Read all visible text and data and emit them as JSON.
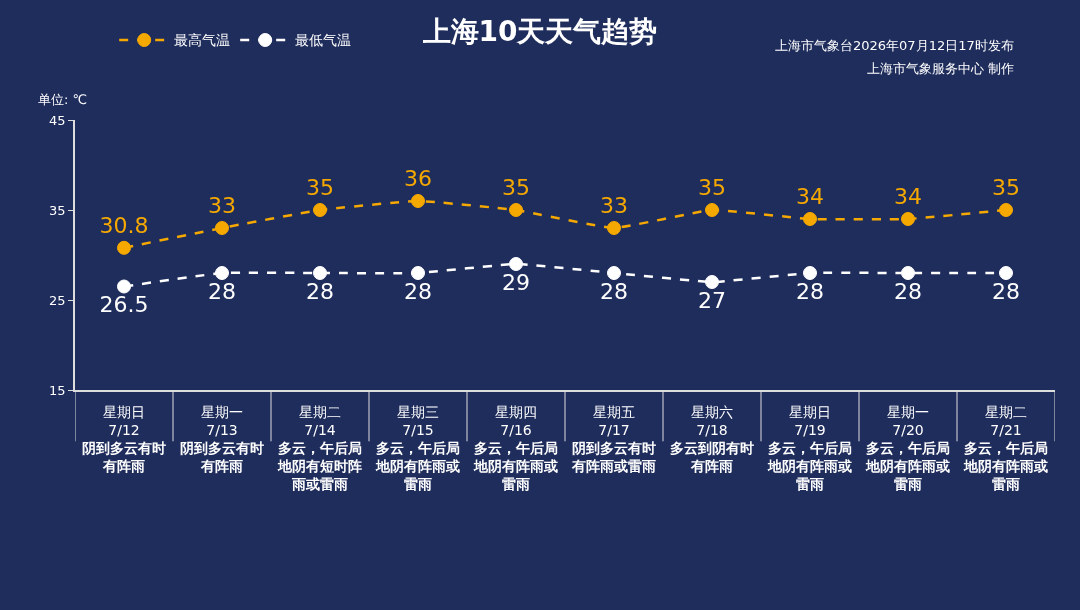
{
  "chart_data": {
    "type": "line",
    "title": "上海10天天气趋势",
    "ylabel": "单位: ℃",
    "categories": [
      "星期日\n7/12\n阴到多云有时有阵雨",
      "星期一\n7/13\n阴到多云有时有阵雨",
      "星期二\n7/14\n多云，午后局地阴有短时阵雨或雷雨",
      "星期三\n7/15\n多云，午后局地阴有阵雨或雷雨",
      "星期四\n7/16\n多云，午后局地阴有阵雨或雷雨",
      "星期五\n7/17\n阴到多云有时有阵雨或雷雨",
      "星期六\n7/18\n多云到阴有时有阵雨",
      "星期日\n7/19\n多云，午后局地阴有阵雨或雷雨",
      "星期一\n7/20\n多云，午后局地阴有阵雨或雷雨",
      "星期二\n7/21\n多云，午后局地阴有阵雨或雷雨"
    ],
    "series": [
      {
        "name": "最高气温",
        "color": "#f5a800",
        "values": [
          30.8,
          33,
          35,
          36,
          35,
          33,
          35,
          34,
          34,
          35
        ]
      },
      {
        "name": "最低气温",
        "color": "#ffffff",
        "values": [
          26.5,
          28,
          28,
          28,
          29,
          28,
          27,
          28,
          28,
          28
        ]
      }
    ],
    "ylim": [
      15,
      45
    ],
    "yticks": [
      15,
      25,
      35,
      45
    ],
    "data_labels": true,
    "marker": "circle",
    "line_style": "dashed",
    "legend": "top left",
    "grid": false,
    "annotations": [
      "上海市气象台2026年07月12日17时发布",
      "上海市气象服务中心 制作"
    ]
  }
}
